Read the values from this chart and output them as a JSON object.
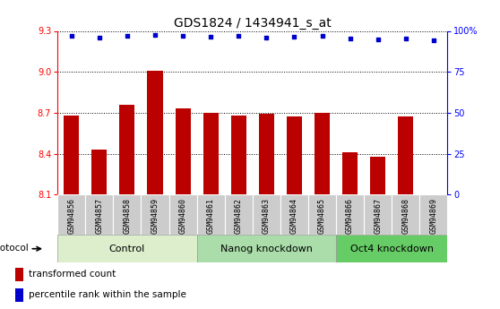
{
  "title": "GDS1824 / 1434941_s_at",
  "samples": [
    "GSM94856",
    "GSM94857",
    "GSM94858",
    "GSM94859",
    "GSM94860",
    "GSM94861",
    "GSM94862",
    "GSM94863",
    "GSM94864",
    "GSM94865",
    "GSM94866",
    "GSM94867",
    "GSM94868",
    "GSM94869"
  ],
  "bar_values": [
    8.68,
    8.43,
    8.76,
    9.01,
    8.73,
    8.7,
    8.68,
    8.69,
    8.67,
    8.7,
    8.41,
    8.38,
    8.67,
    8.1
  ],
  "percentile_values": [
    97,
    96,
    97,
    97.5,
    97,
    96.5,
    97,
    96,
    96.5,
    97,
    95.5,
    95,
    95.5,
    94.5
  ],
  "ylim_left": [
    8.1,
    9.3
  ],
  "ylim_right": [
    0,
    100
  ],
  "yticks_left": [
    8.1,
    8.4,
    8.7,
    9.0,
    9.3
  ],
  "yticks_right": [
    0,
    25,
    50,
    75,
    100
  ],
  "bar_color": "#BB0000",
  "dot_color": "#0000CC",
  "groups": [
    {
      "label": "Control",
      "start": 0,
      "end": 5,
      "color": "#DDEECC"
    },
    {
      "label": "Nanog knockdown",
      "start": 5,
      "end": 10,
      "color": "#AADDAA"
    },
    {
      "label": "Oct4 knockdown",
      "start": 10,
      "end": 14,
      "color": "#66CC66"
    }
  ],
  "group_bar_bg": "#CCCCCC",
  "protocol_label": "protocol",
  "legend_items": [
    {
      "label": "transformed count",
      "color": "#BB0000"
    },
    {
      "label": "percentile rank within the sample",
      "color": "#0000CC"
    }
  ],
  "title_fontsize": 10,
  "tick_fontsize": 7,
  "group_label_fontsize": 8
}
